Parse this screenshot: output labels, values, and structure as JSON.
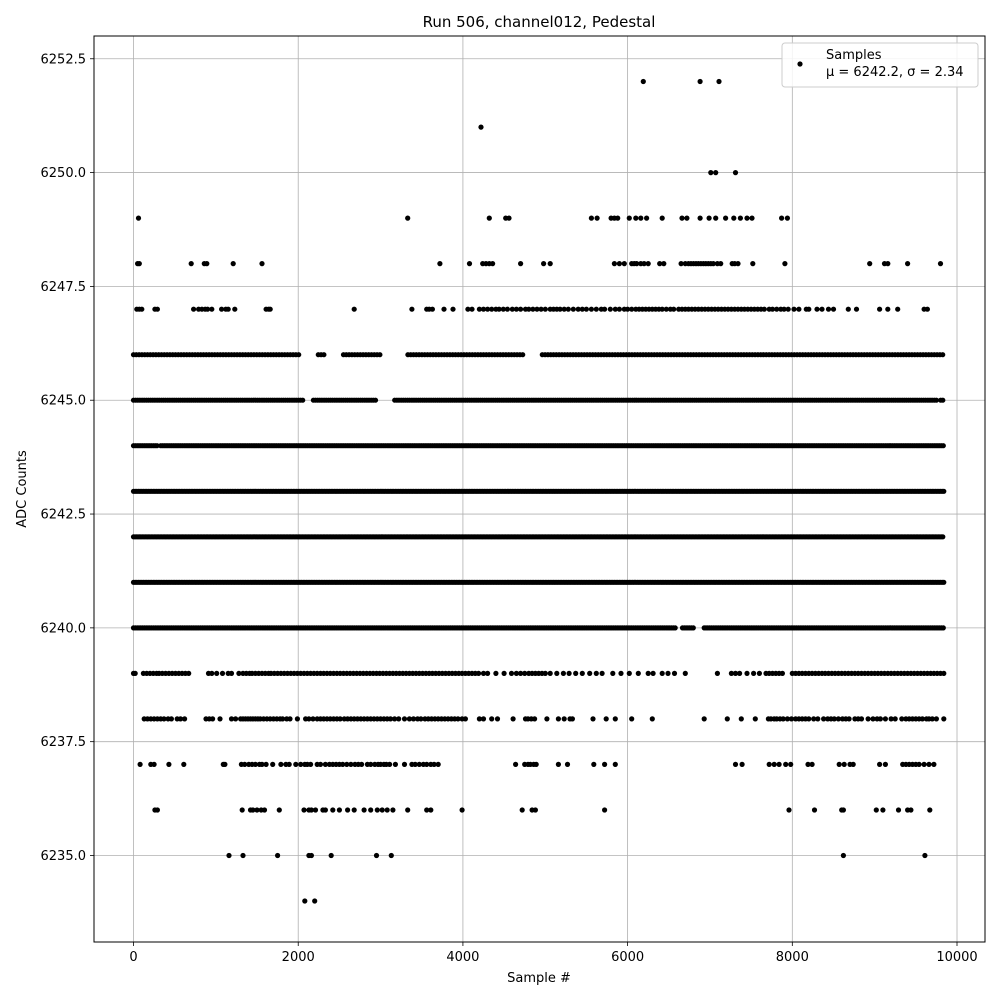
{
  "chart_data": {
    "type": "scatter",
    "title": "Run 506, channel012, Pedestal",
    "xlabel": "Sample #",
    "ylabel": "ADC Counts",
    "xlim": [
      -480,
      10340
    ],
    "ylim": [
      6233.1,
      6253.0
    ],
    "xticks": [
      0,
      2000,
      4000,
      6000,
      8000,
      10000
    ],
    "xtick_labels": [
      "0",
      "2000",
      "4000",
      "6000",
      "8000",
      "10000"
    ],
    "yticks": [
      6235.0,
      6237.5,
      6240.0,
      6242.5,
      6245.0,
      6247.5,
      6250.0,
      6252.5
    ],
    "ytick_labels": [
      "6235.0",
      "6237.5",
      "6240.0",
      "6242.5",
      "6245.0",
      "6247.5",
      "6250.0",
      "6252.5"
    ],
    "grid": true,
    "legend": {
      "position": "top-right",
      "entries": [
        "Samples",
        "μ = 6242.2, σ = 2.34"
      ]
    },
    "marker_color": "#000000",
    "series": [
      {
        "name": "Samples",
        "levels": [
          {
            "y": 6234,
            "x": [
              2080,
              2200
            ]
          },
          {
            "y": 6235,
            "x": [
              1160,
              1330,
              1750,
              2130,
              2160,
              2400,
              2950,
              3130,
              8620,
              9610
            ]
          },
          {
            "y": 6236,
            "x": [
              260,
              290,
              1320,
              1420,
              1450,
              1500,
              1550,
              1590,
              1770,
              2070,
              2130,
              2160,
              2210,
              2300,
              2330,
              2420,
              2500,
              2600,
              2680,
              2800,
              2880,
              2960,
              3020,
              3080,
              3150,
              3330,
              3560,
              3610,
              3990,
              4720,
              4840,
              4880,
              5720,
              7960,
              8270,
              8600,
              8620,
              9020,
              9100,
              9290,
              9400,
              9440,
              9670
            ]
          },
          {
            "y": 6237,
            "x": [
              80,
              210,
              250,
              430,
              610,
              1090,
              1110,
              1310,
              1350,
              1400,
              1440,
              1480,
              1530,
              1560,
              1610,
              1690,
              1790,
              1850,
              1890,
              1970,
              2030,
              2080,
              2110,
              2150,
              2230,
              2270,
              2330,
              2380,
              2420,
              2460,
              2500,
              2540,
              2590,
              2640,
              2690,
              2730,
              2770,
              2840,
              2880,
              2930,
              2970,
              3000,
              3040,
              3070,
              3110,
              3180,
              3290,
              3380,
              3420,
              3470,
              3520,
              3560,
              3610,
              3650,
              3700,
              4640,
              4750,
              4790,
              4820,
              4860,
              4890,
              5160,
              5270,
              5590,
              5720,
              5850,
              7310,
              7390,
              7720,
              7780,
              7840,
              7920,
              7980,
              8190,
              8240,
              8570,
              8630,
              8700,
              8740,
              9060,
              9130,
              9340,
              9380,
              9420,
              9460,
              9500,
              9540,
              9600,
              9660,
              9720
            ]
          },
          {
            "y": 6238,
            "x": [
              130,
              170,
              210,
              250,
              290,
              330,
              370,
              420,
              460,
              530,
              570,
              620,
              880,
              920,
              960,
              1050,
              1190,
              1240,
              1300,
              1330,
              1360,
              1390,
              1420,
              1450,
              1480,
              1510,
              1540,
              1580,
              1620,
              1660,
              1700,
              1740,
              1780,
              1810,
              1860,
              1900,
              1990,
              2090,
              2130,
              2180,
              2230,
              2270,
              2310,
              2350,
              2390,
              2430,
              2470,
              2510,
              2560,
              2600,
              2640,
              2680,
              2720,
              2760,
              2800,
              2840,
              2880,
              2920,
              2960,
              3000,
              3040,
              3080,
              3120,
              3170,
              3220,
              3290,
              3350,
              3400,
              3450,
              3490,
              3540,
              3580,
              3620,
              3660,
              3700,
              3740,
              3780,
              3820,
              3860,
              3900,
              3940,
              3990,
              4030,
              4200,
              4250,
              4350,
              4420,
              4610,
              4760,
              4790,
              4830,
              4870,
              5020,
              5160,
              5230,
              5300,
              5330,
              5580,
              5740,
              5850,
              6050,
              6300,
              6930,
              7210,
              7380,
              7550,
              7710,
              7740,
              7780,
              7810,
              7850,
              7890,
              7940,
              7990,
              8040,
              8080,
              8120,
              8160,
              8200,
              8260,
              8310,
              8380,
              8430,
              8470,
              8510,
              8560,
              8610,
              8650,
              8690,
              8760,
              8800,
              8840,
              8920,
              8980,
              9030,
              9070,
              9130,
              9200,
              9250,
              9330,
              9380,
              9420,
              9460,
              9500,
              9540,
              9580,
              9630,
              9660,
              9700,
              9750,
              9840
            ]
          },
          {
            "y": 6239,
            "x": [
              0,
              20,
              120,
              160,
              200,
              240,
              280,
              310,
              350,
              390,
              430,
              470,
              510,
              550,
              590,
              630,
              670,
              910,
              950,
              1010,
              1080,
              1150,
              1190,
              1280,
              1330,
              1370,
              1410,
              1440,
              1480,
              1520,
              1560,
              1600,
              1640,
              1670,
              1710,
              1750,
              1790,
              1830,
              1870,
              1910,
              1950,
              1990,
              2030,
              2070,
              2110,
              2150,
              2190,
              2230,
              2270,
              2310,
              2350,
              2390,
              2430,
              2470,
              2510,
              2550,
              2590,
              2630,
              2670,
              2710,
              2750,
              2790,
              2830,
              2870,
              2910,
              2950,
              2990,
              3030,
              3070,
              3110,
              3150,
              3190,
              3230,
              3270,
              3310,
              3350,
              3390,
              3430,
              3470,
              3510,
              3550,
              3590,
              3630,
              3670,
              3710,
              3750,
              3790,
              3830,
              3870,
              3910,
              3950,
              3990,
              4030,
              4070,
              4110,
              4150,
              4190,
              4250,
              4300,
              4400,
              4500,
              4590,
              4650,
              4700,
              4750,
              4800,
              4840,
              4880,
              4920,
              4960,
              5000,
              5060,
              5140,
              5220,
              5290,
              5370,
              5450,
              5540,
              5620,
              5690,
              5820,
              5920,
              6020,
              6130,
              6250,
              6310,
              6420,
              6490,
              6570,
              6700,
              7090,
              7260,
              7310,
              7360,
              7450,
              7530,
              7600,
              7680,
              7720,
              7760,
              7800,
              7840,
              7880,
              8000,
              8040,
              8080,
              8120,
              8160,
              8200,
              8240,
              8280,
              8320,
              8360,
              8400,
              8440,
              8480,
              8520,
              8560,
              8600,
              8640,
              8680,
              8720,
              8760,
              8800,
              8840,
              8880,
              8920,
              8960,
              9000,
              9040,
              9080,
              9120,
              9160,
              9200,
              9240,
              9280,
              9320,
              9360,
              9400,
              9440,
              9480,
              9520,
              9560,
              9600,
              9640,
              9680,
              9720,
              9760,
              9800,
              9840
            ]
          }
        ],
        "bands": [
          {
            "y": 6240,
            "x_start": 0,
            "x_end": 9840,
            "step": 22,
            "gaps": [
              [
                6580,
                6650
              ],
              [
                6800,
                6920
              ]
            ]
          },
          {
            "y": 6241,
            "x_start": 0,
            "x_end": 9840,
            "step": 20,
            "gaps": []
          },
          {
            "y": 6242,
            "x_start": 0,
            "x_end": 9840,
            "step": 18,
            "gaps": []
          },
          {
            "y": 6243,
            "x_start": 0,
            "x_end": 9840,
            "step": 20,
            "gaps": []
          },
          {
            "y": 6244,
            "x_start": 0,
            "x_end": 9840,
            "step": 22,
            "gaps": [
              [
                290,
                320
              ]
            ]
          },
          {
            "y": 6245,
            "x_start": 0,
            "x_end": 9840,
            "step": 26,
            "gaps": [
              [
                2060,
                2170
              ],
              [
                2950,
                3160
              ],
              [
                9760,
                9800
              ]
            ]
          },
          {
            "y": 6246,
            "x_start": 0,
            "x_end": 9840,
            "step": 34,
            "gaps": [
              [
                2010,
                2210
              ],
              [
                2330,
                2520
              ],
              [
                3020,
                3300
              ],
              [
                4740,
                4930
              ]
            ]
          }
        ],
        "sparse_upper": [
          {
            "y": 6247,
            "x": [
              40,
              70,
              100,
              260,
              290,
              730,
              790,
              830,
              870,
              900,
              950,
              1070,
              1120,
              1150,
              1230,
              1610,
              1640,
              1660,
              2680,
              3380,
              3560,
              3590,
              3630,
              3770,
              3880,
              4060,
              4110,
              4200,
              4250,
              4300,
              4350,
              4400,
              4440,
              4490,
              4540,
              4600,
              4650,
              4700,
              4760,
              4800,
              4850,
              4900,
              4950,
              5000,
              5060,
              5100,
              5140,
              5180,
              5230,
              5280,
              5340,
              5400,
              5450,
              5500,
              5560,
              5620,
              5680,
              5720,
              5790,
              5850,
              5900,
              5960,
              6000,
              6050,
              6100,
              6140,
              6180,
              6220,
              6260,
              6300,
              6340,
              6380,
              6420,
              6470,
              6520,
              6560,
              6620,
              6660,
              6700,
              6740,
              6780,
              6820,
              6860,
              6900,
              6940,
              6980,
              7020,
              7060,
              7100,
              7140,
              7180,
              7220,
              7260,
              7300,
              7340,
              7380,
              7420,
              7460,
              7500,
              7540,
              7580,
              7620,
              7660,
              7720,
              7760,
              7810,
              7860,
              7900,
              7950,
              8020,
              8080,
              8170,
              8200,
              8300,
              8360,
              8440,
              8500,
              8680,
              8780,
              9060,
              9160,
              9280,
              9600,
              9640
            ]
          },
          {
            "y": 6248,
            "x": [
              50,
              70,
              700,
              860,
              890,
              1210,
              1560,
              3720,
              4080,
              4240,
              4280,
              4320,
              4360,
              4700,
              4980,
              5060,
              5840,
              5900,
              5960,
              6050,
              6080,
              6110,
              6160,
              6200,
              6250,
              6390,
              6440,
              6650,
              6700,
              6740,
              6770,
              6800,
              6830,
              6860,
              6890,
              6920,
              6950,
              6980,
              7010,
              7040,
              7090,
              7130,
              7270,
              7300,
              7340,
              7520,
              7910,
              8940,
              9120,
              9160,
              9400,
              9800
            ]
          },
          {
            "y": 6249,
            "x": [
              60,
              3330,
              4320,
              4520,
              4560,
              5560,
              5630,
              5800,
              5840,
              5880,
              6020,
              6100,
              6160,
              6230,
              6420,
              6660,
              6720,
              6880,
              6990,
              7070,
              7190,
              7290,
              7370,
              7450,
              7510,
              7870,
              7940
            ]
          },
          {
            "y": 6250,
            "x": [
              7010,
              7070,
              7310
            ]
          },
          {
            "y": 6251,
            "x": [
              4220
            ]
          },
          {
            "y": 6252,
            "x": [
              6190,
              6880,
              7110
            ]
          }
        ]
      }
    ]
  }
}
